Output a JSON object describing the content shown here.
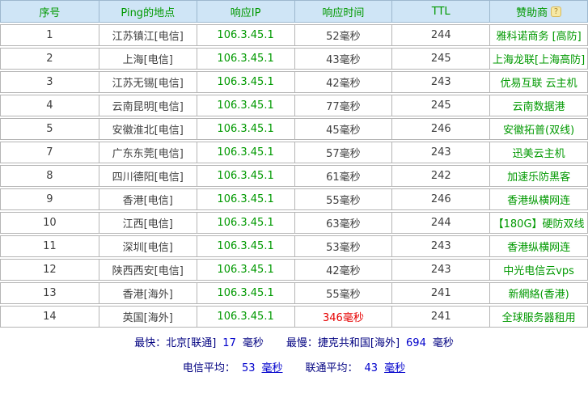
{
  "table": {
    "headers": [
      "序号",
      "Ping的地点",
      "响应IP",
      "响应时间",
      "TTL",
      "赞助商"
    ],
    "help_icon": "?",
    "rows": [
      {
        "no": "1",
        "location": "江苏镇江[电信]",
        "ip": "106.3.45.1",
        "time": "52毫秒",
        "ttl": "244",
        "sponsor": "雅科诺商务 [高防]"
      },
      {
        "no": "2",
        "location": "上海[电信]",
        "ip": "106.3.45.1",
        "time": "43毫秒",
        "ttl": "245",
        "sponsor": "上海龙联[上海高防]"
      },
      {
        "no": "3",
        "location": "江苏无锡[电信]",
        "ip": "106.3.45.1",
        "time": "42毫秒",
        "ttl": "243",
        "sponsor": "优易互联 云主机"
      },
      {
        "no": "4",
        "location": "云南昆明[电信]",
        "ip": "106.3.45.1",
        "time": "77毫秒",
        "ttl": "245",
        "sponsor": "云南数据港"
      },
      {
        "no": "5",
        "location": "安徽淮北[电信]",
        "ip": "106.3.45.1",
        "time": "45毫秒",
        "ttl": "246",
        "sponsor": "安徽拓普(双线)"
      },
      {
        "no": "7",
        "location": "广东东莞[电信]",
        "ip": "106.3.45.1",
        "time": "57毫秒",
        "ttl": "243",
        "sponsor": "迅美云主机"
      },
      {
        "no": "8",
        "location": "四川德阳[电信]",
        "ip": "106.3.45.1",
        "time": "61毫秒",
        "ttl": "242",
        "sponsor": "加速乐防黑客"
      },
      {
        "no": "9",
        "location": "香港[电信]",
        "ip": "106.3.45.1",
        "time": "55毫秒",
        "ttl": "246",
        "sponsor": "香港纵横网连"
      },
      {
        "no": "10",
        "location": "江西[电信]",
        "ip": "106.3.45.1",
        "time": "63毫秒",
        "ttl": "244",
        "sponsor": "【180G】硬防双线"
      },
      {
        "no": "11",
        "location": "深圳[电信]",
        "ip": "106.3.45.1",
        "time": "53毫秒",
        "ttl": "243",
        "sponsor": "香港纵横网连"
      },
      {
        "no": "12",
        "location": "陕西西安[电信]",
        "ip": "106.3.45.1",
        "time": "42毫秒",
        "ttl": "243",
        "sponsor": "中光电信云vps"
      },
      {
        "no": "13",
        "location": "香港[海外]",
        "ip": "106.3.45.1",
        "time": "55毫秒",
        "ttl": "241",
        "sponsor": "新網絡(香港)"
      },
      {
        "no": "14",
        "location": "英国[海外]",
        "ip": "106.3.45.1",
        "time": "346毫秒",
        "ttl": "241",
        "sponsor": "全球服务器租用",
        "time_color": "#e60000"
      }
    ]
  },
  "summary": {
    "fastest_label": "最快：",
    "fastest_location": "北京[联通]",
    "fastest_value": "17",
    "ms_unit": "毫秒",
    "slowest_label": "最慢：",
    "slowest_location": "捷克共和国[海外]",
    "slowest_value": "694",
    "telecom_avg_label": "电信平均：",
    "telecom_avg_value": "53",
    "unicom_avg_label": "联通平均：",
    "unicom_avg_value": "43"
  },
  "colors": {
    "header_bg": "#cfe5f6",
    "border_header": "#9db8ce",
    "border_row": "#b5b5b5",
    "green": "#009900",
    "text": "#3f3f3f",
    "red": "#e60000",
    "navy": "#000080",
    "blue": "#0000cc"
  }
}
